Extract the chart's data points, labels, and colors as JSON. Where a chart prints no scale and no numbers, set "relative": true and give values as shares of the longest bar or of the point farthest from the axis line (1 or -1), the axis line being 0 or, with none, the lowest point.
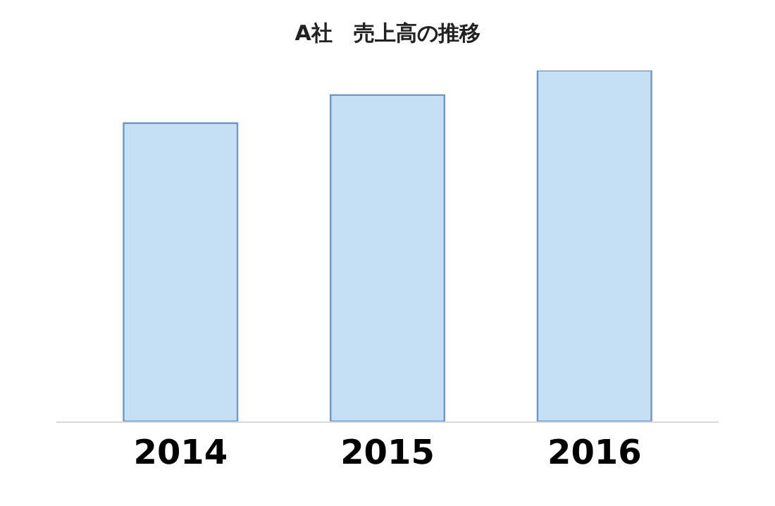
{
  "chart_data": {
    "type": "bar",
    "title": "A社　売上高の推移",
    "relative": true,
    "categories": [
      "2014",
      "2015",
      "2016"
    ],
    "values": [
      0.85,
      0.93,
      1
    ],
    "color": "#c5dff5",
    "tick_labels": "x"
  }
}
